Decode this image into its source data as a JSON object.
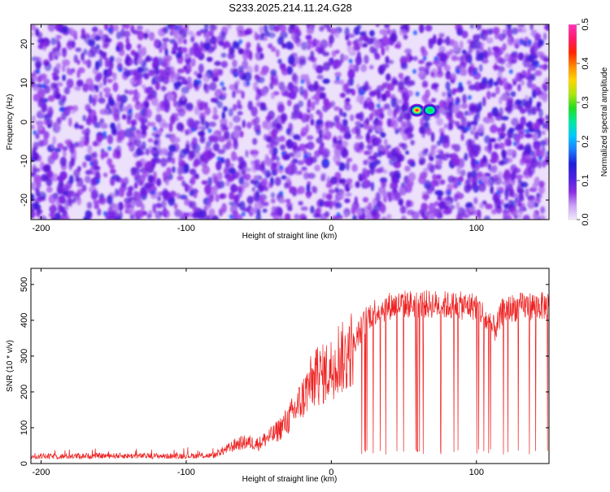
{
  "title": "S233.2025.214.11.24.G28",
  "chart_data": [
    {
      "type": "heatmap",
      "xlabel": "Height of straight line (km)",
      "ylabel": "Frequency (Hz)",
      "xlim": [
        -207,
        150
      ],
      "ylim": [
        -25,
        25
      ],
      "x_ticks": [
        -200,
        -100,
        0,
        100
      ],
      "x_tick_labels": [
        "-200",
        "-100",
        "0",
        "100"
      ],
      "y_ticks": [
        -20,
        -10,
        0,
        10,
        20
      ],
      "y_tick_labels": [
        "-20",
        "-10",
        "0",
        "10",
        "20"
      ],
      "colorbar": {
        "label": "Normalized spectral amplitude",
        "range": [
          0,
          0.5
        ],
        "ticks": [
          0,
          0.1,
          0.2,
          0.3,
          0.4,
          0.5
        ],
        "tick_labels": [
          "0.0",
          "0.1",
          "0.2",
          "0.3",
          "0.4",
          "0.5"
        ],
        "colors": [
          "#f2e8ff",
          "#c9a2f5",
          "#8a2be2",
          "#4a1fe0",
          "#1e1ed6",
          "#1a7cff",
          "#00c8ff",
          "#00e8a0",
          "#22dd22",
          "#aee60e",
          "#ffd500",
          "#ff8800",
          "#ff2200",
          "#ff1a6a",
          "#ff33bb"
        ]
      },
      "background_level": 0.02,
      "peaks": [
        {
          "x": 59,
          "y": 3,
          "value": 0.45
        },
        {
          "x": 68,
          "y": 3,
          "value": 0.27
        }
      ],
      "quiet_band_x": [
        56,
        62
      ]
    },
    {
      "type": "line",
      "xlabel": "Height of straight line (km)",
      "ylabel": "SNR (10 * v/v)",
      "xlim": [
        -207,
        150
      ],
      "ylim": [
        0,
        545
      ],
      "x_ticks": [
        -200,
        -100,
        0,
        100
      ],
      "x_tick_labels": [
        "-200",
        "-100",
        "0",
        "100"
      ],
      "y_ticks": [
        0,
        100,
        200,
        300,
        400,
        500
      ],
      "y_tick_labels": [
        "0",
        "100",
        "200",
        "300",
        "400",
        "500"
      ],
      "series": [
        {
          "color": "#ee2222",
          "x": [
            -207,
            -190,
            -170,
            -150,
            -130,
            -110,
            -90,
            -81,
            -78,
            -72,
            -65,
            -58,
            -50,
            -45,
            -40,
            -35,
            -30,
            -25,
            -20,
            -15,
            -10,
            -5,
            0,
            5,
            10,
            15,
            20,
            25,
            30,
            35,
            40,
            50,
            60,
            70,
            80,
            90,
            95,
            100,
            103,
            106,
            109,
            112,
            115,
            118,
            125,
            135,
            150
          ],
          "y": [
            20,
            20,
            21,
            22,
            21,
            21,
            22,
            22,
            30,
            40,
            55,
            60,
            55,
            70,
            80,
            100,
            120,
            150,
            180,
            220,
            240,
            250,
            265,
            300,
            290,
            330,
            370,
            410,
            425,
            432,
            440,
            445,
            445,
            445,
            442,
            440,
            440,
            440,
            425,
            405,
            385,
            375,
            390,
            425,
            435,
            440,
            440
          ]
        }
      ]
    }
  ]
}
